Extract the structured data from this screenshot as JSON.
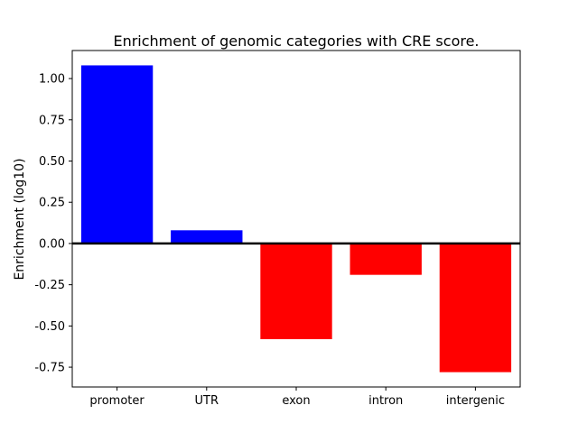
{
  "chart_data": {
    "type": "bar",
    "title": "Enrichment of genomic categories with CRE score.",
    "ylabel": "Enrichment (log10)",
    "xlabel": "",
    "categories": [
      "promoter",
      "UTR",
      "exon",
      "intron",
      "intergenic"
    ],
    "values": [
      1.08,
      0.08,
      -0.58,
      -0.19,
      -0.78
    ],
    "bar_colors": [
      "#0000ff",
      "#0000ff",
      "#ff0000",
      "#ff0000",
      "#ff0000"
    ],
    "positive_color": "#0000ff",
    "negative_color": "#ff0000",
    "axis_color": "#000000",
    "background_color": "#ffffff",
    "ylim": [
      -0.87,
      1.17
    ],
    "yticks": [
      1.0,
      0.75,
      0.5,
      0.25,
      0.0,
      -0.25,
      -0.5,
      -0.75
    ],
    "zero_line": true,
    "grid": false,
    "legend": "none"
  }
}
